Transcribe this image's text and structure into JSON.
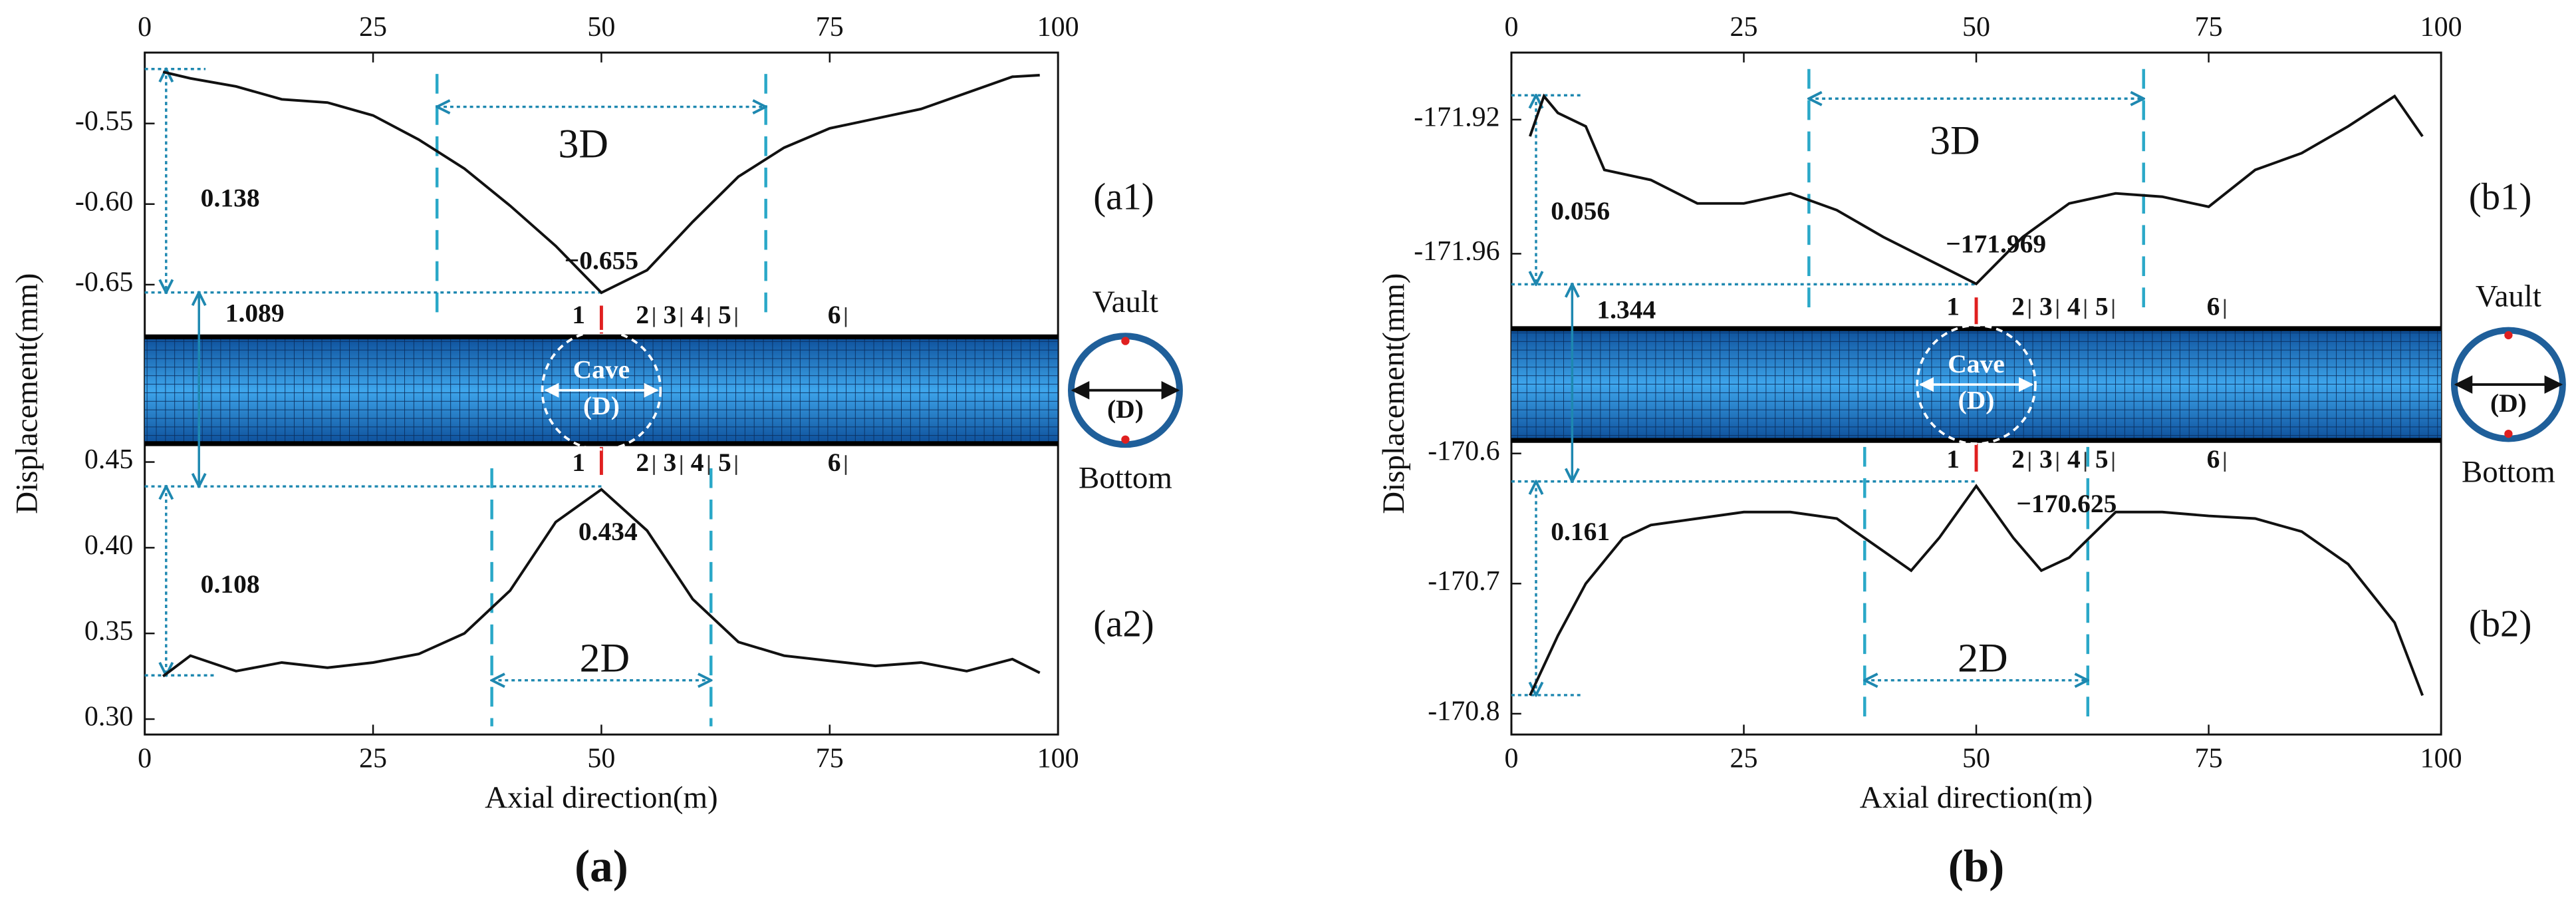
{
  "chart_data": [
    {
      "type": "line",
      "label": "(a1)",
      "color": "#111111",
      "x": [
        2,
        5,
        10,
        15,
        20,
        25,
        30,
        35,
        40,
        45,
        50,
        55,
        60,
        65,
        70,
        75,
        80,
        85,
        90,
        95,
        98
      ],
      "values": [
        -0.518,
        -0.522,
        -0.527,
        -0.535,
        -0.537,
        -0.545,
        -0.56,
        -0.578,
        -0.601,
        -0.626,
        -0.655,
        -0.641,
        -0.611,
        -0.583,
        -0.565,
        -0.553,
        -0.547,
        -0.541,
        -0.531,
        -0.521,
        -0.52
      ],
      "ylim": [
        -0.662,
        -0.506
      ],
      "yticks": [
        -0.55,
        {
          "value": -0.6,
          "label": "-0.60"
        },
        -0.65
      ],
      "span_label": "3D",
      "diff_label": "0.138",
      "extreme_label": "−0.655"
    },
    {
      "type": "line",
      "label": "(a2)",
      "color": "#111111",
      "x": [
        2,
        5,
        10,
        15,
        20,
        25,
        30,
        35,
        40,
        45,
        50,
        55,
        60,
        65,
        70,
        75,
        80,
        85,
        90,
        95,
        98
      ],
      "values": [
        0.325,
        0.337,
        0.328,
        0.333,
        0.33,
        0.333,
        0.338,
        0.35,
        0.375,
        0.415,
        0.434,
        0.41,
        0.37,
        0.345,
        0.337,
        0.334,
        0.331,
        0.333,
        0.328,
        0.335,
        0.327
      ],
      "ylim": [
        0.291,
        0.477
      ],
      "yticks": [
        {
          "value": 0.3,
          "label": "0.30"
        },
        0.35,
        {
          "value": 0.4,
          "label": "0.40"
        },
        0.45
      ],
      "span_label": "2D",
      "diff_label": "0.108",
      "extreme_label": "0.434"
    },
    {
      "type": "line",
      "label": "(b1)",
      "color": "#111111",
      "x": [
        2,
        3.5,
        5,
        8,
        10,
        15,
        20,
        25,
        30,
        35,
        40,
        45,
        50,
        55,
        60,
        65,
        70,
        75,
        80,
        85,
        90,
        95,
        98
      ],
      "values": [
        -171.925,
        -171.913,
        -171.918,
        -171.922,
        -171.935,
        -171.938,
        -171.945,
        -171.945,
        -171.942,
        -171.947,
        -171.955,
        -171.962,
        -171.969,
        -171.955,
        -171.945,
        -171.942,
        -171.943,
        -171.946,
        -171.935,
        -171.93,
        -171.922,
        -171.913,
        -171.925
      ],
      "ylim": [
        -171.975,
        -171.9
      ],
      "yticks": [
        -171.92,
        -171.96
      ],
      "span_label": "3D",
      "diff_label": "0.056",
      "extreme_label": "−171.969"
    },
    {
      "type": "line",
      "label": "(b2)",
      "color": "#111111",
      "x": [
        2,
        5,
        8,
        12,
        15,
        20,
        25,
        30,
        35,
        40,
        43,
        46,
        50,
        54,
        57,
        60,
        65,
        70,
        75,
        80,
        85,
        90,
        95,
        98
      ],
      "values": [
        -170.786,
        -170.74,
        -170.7,
        -170.665,
        -170.655,
        -170.65,
        -170.645,
        -170.645,
        -170.65,
        -170.675,
        -170.69,
        -170.665,
        -170.625,
        -170.665,
        -170.69,
        -170.68,
        -170.645,
        -170.645,
        -170.648,
        -170.65,
        -170.66,
        -170.685,
        -170.73,
        -170.786
      ],
      "ylim": [
        -170.816,
        -170.571
      ],
      "yticks": [
        -170.6,
        -170.7,
        -170.8
      ],
      "span_label": "2D",
      "diff_label": "0.161",
      "extreme_label": "−170.625"
    }
  ],
  "panels": [
    {
      "label": "(a)",
      "x_label": "Axial direction(m)",
      "y_label": "Displacement(mm)",
      "xlim": [
        0,
        100
      ],
      "xticks": [
        0,
        25,
        50,
        75,
        100
      ],
      "gap_label": "1.089",
      "sections": [
        "1",
        "2",
        "3",
        "4",
        "5",
        "6"
      ],
      "cave_label": "Cave",
      "cave_diameter": "(D)",
      "vault_label": "Vault",
      "ring_diameter": "(D)",
      "bottom_label": "Bottom"
    },
    {
      "label": "(b)",
      "x_label": "Axial direction(m)",
      "y_label": "Displacement(mm)",
      "xlim": [
        0,
        100
      ],
      "xticks": [
        0,
        25,
        50,
        75,
        100
      ],
      "gap_label": "1.344",
      "sections": [
        "1",
        "2",
        "3",
        "4",
        "5",
        "6"
      ],
      "cave_label": "Cave",
      "cave_diameter": "(D)",
      "vault_label": "Vault",
      "ring_diameter": "(D)",
      "bottom_label": "Bottom"
    }
  ]
}
